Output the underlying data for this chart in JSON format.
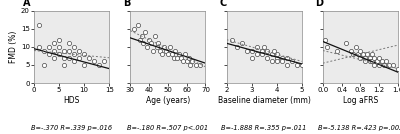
{
  "panels": [
    {
      "label": "A",
      "xlabel": "HDS",
      "stat_text": "B=-.370 R=.339 p=.016",
      "xlim": [
        0,
        15
      ],
      "xticks": [
        0,
        5,
        10,
        15
      ],
      "scatter_x": [
        1,
        1,
        2,
        2,
        3,
        3,
        4,
        4,
        4,
        5,
        5,
        5,
        6,
        6,
        6,
        7,
        7,
        7,
        8,
        8,
        8,
        9,
        9,
        10,
        10,
        11,
        12,
        13,
        14
      ],
      "scatter_y": [
        10,
        16,
        9,
        5,
        10,
        8,
        11,
        9,
        7,
        12,
        10,
        8,
        9,
        7,
        5,
        11,
        9,
        7,
        10,
        8,
        6,
        9,
        7,
        8,
        5,
        7,
        6,
        5,
        6
      ],
      "line_x": [
        0,
        15
      ],
      "line_y": [
        9.5,
        4.0
      ],
      "dline_x": [
        0,
        15
      ],
      "dline_y": [
        9.0,
        7.0
      ],
      "has_second_dline": false
    },
    {
      "label": "B",
      "xlabel": "Age (years)",
      "stat_text": "B=-.180 R=.507 p<.001",
      "xlim": [
        30,
        70
      ],
      "xticks": [
        30,
        40,
        50,
        60,
        70
      ],
      "scatter_x": [
        32,
        34,
        35,
        36,
        37,
        38,
        39,
        40,
        41,
        42,
        43,
        44,
        45,
        46,
        47,
        48,
        49,
        50,
        51,
        52,
        53,
        54,
        55,
        56,
        57,
        58,
        59,
        60,
        61,
        62,
        63,
        65,
        67
      ],
      "scatter_y": [
        15,
        16,
        12,
        13,
        11,
        14,
        10,
        12,
        11,
        9,
        13,
        10,
        11,
        9,
        8,
        10,
        9,
        8,
        10,
        8,
        7,
        9,
        7,
        8,
        7,
        6,
        8,
        6,
        7,
        5,
        6,
        5,
        5
      ],
      "line_x": [
        30,
        70
      ],
      "line_y": [
        12.5,
        5.5
      ],
      "dline_x": [
        30,
        70
      ],
      "dline_y": [
        14.5,
        4.5
      ],
      "has_second_dline": false
    },
    {
      "label": "C",
      "xlabel": "Baseline diameter (mm)",
      "stat_text": "B=-1.888 R=.355 p=.011",
      "xlim": [
        2,
        5
      ],
      "xticks": [
        2,
        3,
        4,
        5
      ],
      "scatter_x": [
        2.2,
        2.4,
        2.6,
        2.8,
        3.0,
        3.0,
        3.2,
        3.2,
        3.4,
        3.4,
        3.5,
        3.6,
        3.6,
        3.8,
        3.8,
        3.9,
        4.0,
        4.0,
        4.0,
        4.2,
        4.2,
        4.4,
        4.4,
        4.6,
        4.8,
        5.0
      ],
      "scatter_y": [
        12,
        10,
        11,
        9,
        9,
        7,
        10,
        8,
        9,
        8,
        10,
        7,
        9,
        8,
        6,
        9,
        8,
        7,
        6,
        7,
        6,
        5,
        7,
        6,
        5,
        5
      ],
      "line_x": [
        2,
        5
      ],
      "line_y": [
        11.0,
        5.3
      ],
      "dline_x": [
        2,
        5
      ],
      "dline_y": [
        12.0,
        6.0
      ],
      "has_second_dline": false
    },
    {
      "label": "D",
      "xlabel": "Log aFRS",
      "stat_text": "B=-5.138 R=.423 p=.002",
      "xlim": [
        0.0,
        1.6
      ],
      "xticks": [
        0.0,
        0.4,
        0.8,
        1.2,
        1.6
      ],
      "scatter_x": [
        0.05,
        0.1,
        0.3,
        0.5,
        0.6,
        0.65,
        0.7,
        0.75,
        0.8,
        0.8,
        0.85,
        0.9,
        0.9,
        0.95,
        1.0,
        1.0,
        1.05,
        1.05,
        1.1,
        1.1,
        1.15,
        1.2,
        1.2,
        1.25,
        1.3,
        1.35,
        1.4,
        1.5,
        1.6
      ],
      "scatter_y": [
        12,
        10,
        9,
        11,
        9,
        8,
        10,
        8,
        7,
        9,
        8,
        7,
        6,
        8,
        7,
        6,
        8,
        6,
        7,
        5,
        6,
        7,
        5,
        6,
        5,
        6,
        5,
        5,
        4
      ],
      "line_x": [
        0.0,
        1.6
      ],
      "line_y": [
        11.5,
        3.0
      ],
      "dline_x": [
        0.0,
        1.6
      ],
      "dline_y": [
        5.5,
        10.5
      ],
      "dline2_x": [
        0.0,
        1.6
      ],
      "dline2_y": [
        9.0,
        4.0
      ],
      "has_second_dline": true
    }
  ],
  "ylim": [
    0,
    20
  ],
  "yticks": [
    0,
    5,
    10,
    15,
    20
  ],
  "ylabel": "FMD (%)",
  "background_color": "#ebebeb",
  "scatter_color": "white",
  "scatter_edgecolor": "#444444",
  "line_color": "#111111",
  "dline_color": "#777777",
  "fontsize_tick": 5,
  "fontsize_label": 5.5,
  "fontsize_stat": 4.8,
  "fontsize_panel_label": 7
}
